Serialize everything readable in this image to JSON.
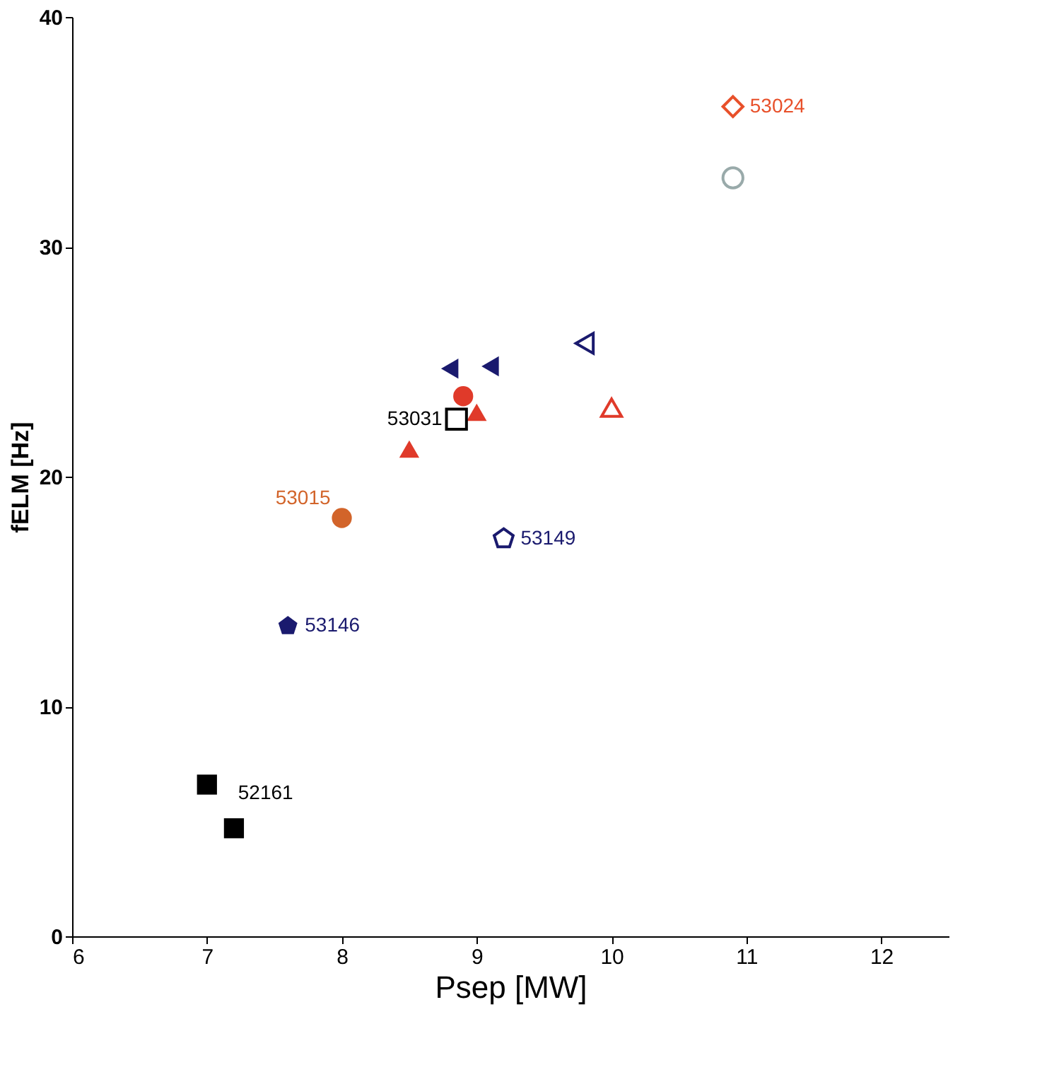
{
  "chart_data": {
    "type": "scatter",
    "xlabel": "Psep [MW]",
    "ylabel": "fELM [Hz]",
    "xlim": [
      6,
      12.5
    ],
    "xticks": [
      6,
      7,
      8,
      9,
      10,
      11,
      12
    ],
    "ylim": [
      0,
      40
    ],
    "yticks": [
      0,
      10,
      20,
      30,
      40
    ],
    "grid": false,
    "series": [
      {
        "name": "52161",
        "color": "#000000",
        "marker": "square",
        "x": [
          7.0,
          7.2
        ],
        "values": [
          6.6,
          4.7
        ]
      },
      {
        "name": "53146",
        "color": "#1a1a6e",
        "x": [
          7.6
        ],
        "values": [
          13.5
        ]
      },
      {
        "name": "53015",
        "color": "#d2642a",
        "marker": "circle",
        "x": [
          8.0
        ],
        "values": [
          18.2
        ]
      },
      {
        "color": "#e03a2a",
        "marker": "triangle",
        "x": [
          8.5,
          9.0
        ],
        "values": [
          21.2,
          22.8
        ]
      },
      {
        "color": "#e03a2a",
        "marker": "circle",
        "x": [
          8.9
        ],
        "values": [
          23.5
        ]
      },
      {
        "name": "53031",
        "color": "#000000",
        "marker": "square",
        "x": [
          8.85
        ],
        "values": [
          22.5
        ]
      },
      {
        "color": "#1a1a6e",
        "marker": "triangle",
        "x": [
          8.8,
          9.1
        ],
        "values": [
          24.7,
          24.8
        ]
      },
      {
        "color": "#1a1a6e",
        "marker": "triangle",
        "x": [
          9.8
        ],
        "values": [
          25.8
        ]
      },
      {
        "color": "#e03a2a",
        "marker": "triangle",
        "x": [
          10.0
        ],
        "values": [
          23.0
        ]
      },
      {
        "name": "53149",
        "color": "#1a1a6e",
        "x": [
          9.2
        ],
        "values": [
          17.3
        ]
      },
      {
        "name": "53024",
        "color": "#e8502a",
        "marker": "diamond",
        "x": [
          10.9
        ],
        "values": [
          36.1
        ]
      },
      {
        "color": "#99aaaa",
        "marker": "circle",
        "x": [
          10.9
        ],
        "values": [
          33.0
        ]
      }
    ]
  }
}
